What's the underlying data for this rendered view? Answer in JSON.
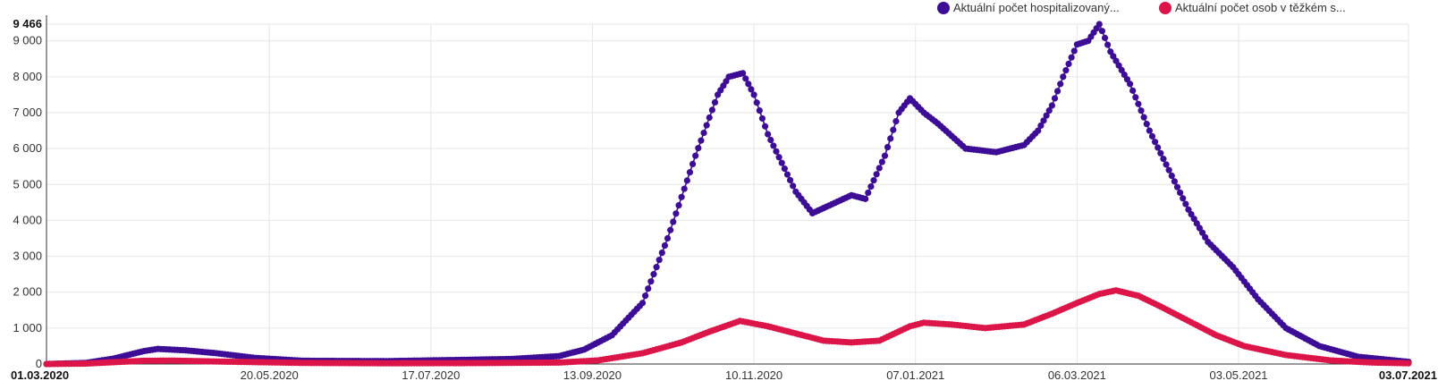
{
  "chart_data": {
    "type": "line",
    "x_start": "01.03.2020",
    "x_end": "03.07.2021",
    "x_tick_labels": [
      "01.03.2020",
      "20.05.2020",
      "17.07.2020",
      "13.09.2020",
      "10.11.2020",
      "07.01.2021",
      "06.03.2021",
      "03.05.2021",
      "03.07.2021"
    ],
    "x_tick_bold": [
      "01.03.2020",
      "03.07.2021"
    ],
    "y_max_label": "9 466",
    "y_tick_labels": [
      "0",
      "1 000",
      "2 000",
      "3 000",
      "4 000",
      "5 000",
      "6 000",
      "7 000",
      "8 000",
      "9 000"
    ],
    "ylim": [
      0,
      9466
    ],
    "grid": true,
    "legend_position": "top-right",
    "series": [
      {
        "name": "Aktuální počet hospitalizovaný...",
        "color": "#3d0d96",
        "points": [
          [
            "01.03.2020",
            0
          ],
          [
            "15.03.2020",
            30
          ],
          [
            "25.03.2020",
            150
          ],
          [
            "05.04.2020",
            360
          ],
          [
            "10.04.2020",
            420
          ],
          [
            "20.04.2020",
            380
          ],
          [
            "01.05.2020",
            300
          ],
          [
            "15.05.2020",
            170
          ],
          [
            "01.06.2020",
            90
          ],
          [
            "01.07.2020",
            80
          ],
          [
            "01.08.2020",
            120
          ],
          [
            "15.08.2020",
            140
          ],
          [
            "01.09.2020",
            220
          ],
          [
            "10.09.2020",
            400
          ],
          [
            "20.09.2020",
            800
          ],
          [
            "01.10.2020",
            1700
          ],
          [
            "10.10.2020",
            3500
          ],
          [
            "20.10.2020",
            5800
          ],
          [
            "28.10.2020",
            7500
          ],
          [
            "01.11.2020",
            8000
          ],
          [
            "06.11.2020",
            8100
          ],
          [
            "10.11.2020",
            7500
          ],
          [
            "15.11.2020",
            6400
          ],
          [
            "20.11.2020",
            5600
          ],
          [
            "25.11.2020",
            4800
          ],
          [
            "01.12.2020",
            4200
          ],
          [
            "08.12.2020",
            4450
          ],
          [
            "15.12.2020",
            4700
          ],
          [
            "20.12.2020",
            4600
          ],
          [
            "27.12.2020",
            5800
          ],
          [
            "01.01.2021",
            7000
          ],
          [
            "05.01.2021",
            7400
          ],
          [
            "10.01.2021",
            7000
          ],
          [
            "15.01.2021",
            6700
          ],
          [
            "25.01.2021",
            6000
          ],
          [
            "05.02.2021",
            5900
          ],
          [
            "15.02.2021",
            6100
          ],
          [
            "20.02.2021",
            6500
          ],
          [
            "25.02.2021",
            7200
          ],
          [
            "01.03.2021",
            8000
          ],
          [
            "06.03.2021",
            8900
          ],
          [
            "10.03.2021",
            9000
          ],
          [
            "14.03.2021",
            9466
          ],
          [
            "18.03.2021",
            8700
          ],
          [
            "25.03.2021",
            7800
          ],
          [
            "01.04.2021",
            6500
          ],
          [
            "08.04.2021",
            5400
          ],
          [
            "15.04.2021",
            4300
          ],
          [
            "22.04.2021",
            3400
          ],
          [
            "01.05.2021",
            2700
          ],
          [
            "10.05.2021",
            1800
          ],
          [
            "20.05.2021",
            1000
          ],
          [
            "01.06.2021",
            500
          ],
          [
            "15.06.2021",
            200
          ],
          [
            "03.07.2021",
            60
          ]
        ]
      },
      {
        "name": "Aktuální počet osob v těžkém s...",
        "color": "#dc1549",
        "points": [
          [
            "01.03.2020",
            0
          ],
          [
            "15.03.2020",
            10
          ],
          [
            "25.03.2020",
            50
          ],
          [
            "05.04.2020",
            90
          ],
          [
            "15.04.2020",
            95
          ],
          [
            "01.05.2020",
            70
          ],
          [
            "01.06.2020",
            30
          ],
          [
            "01.07.2020",
            20
          ],
          [
            "01.08.2020",
            25
          ],
          [
            "01.09.2020",
            40
          ],
          [
            "15.09.2020",
            100
          ],
          [
            "01.10.2020",
            300
          ],
          [
            "15.10.2020",
            600
          ],
          [
            "25.10.2020",
            900
          ],
          [
            "05.11.2020",
            1200
          ],
          [
            "15.11.2020",
            1050
          ],
          [
            "25.11.2020",
            850
          ],
          [
            "05.12.2020",
            650
          ],
          [
            "15.12.2020",
            600
          ],
          [
            "25.12.2020",
            650
          ],
          [
            "05.01.2021",
            1050
          ],
          [
            "10.01.2021",
            1150
          ],
          [
            "20.01.2021",
            1100
          ],
          [
            "01.02.2021",
            1000
          ],
          [
            "15.02.2021",
            1100
          ],
          [
            "25.02.2021",
            1400
          ],
          [
            "06.03.2021",
            1700
          ],
          [
            "14.03.2021",
            1950
          ],
          [
            "20.03.2021",
            2050
          ],
          [
            "28.03.2021",
            1900
          ],
          [
            "05.04.2021",
            1600
          ],
          [
            "15.04.2021",
            1200
          ],
          [
            "25.04.2021",
            800
          ],
          [
            "05.05.2021",
            500
          ],
          [
            "20.05.2021",
            250
          ],
          [
            "05.06.2021",
            100
          ],
          [
            "20.06.2021",
            40
          ],
          [
            "03.07.2021",
            20
          ]
        ]
      }
    ]
  }
}
